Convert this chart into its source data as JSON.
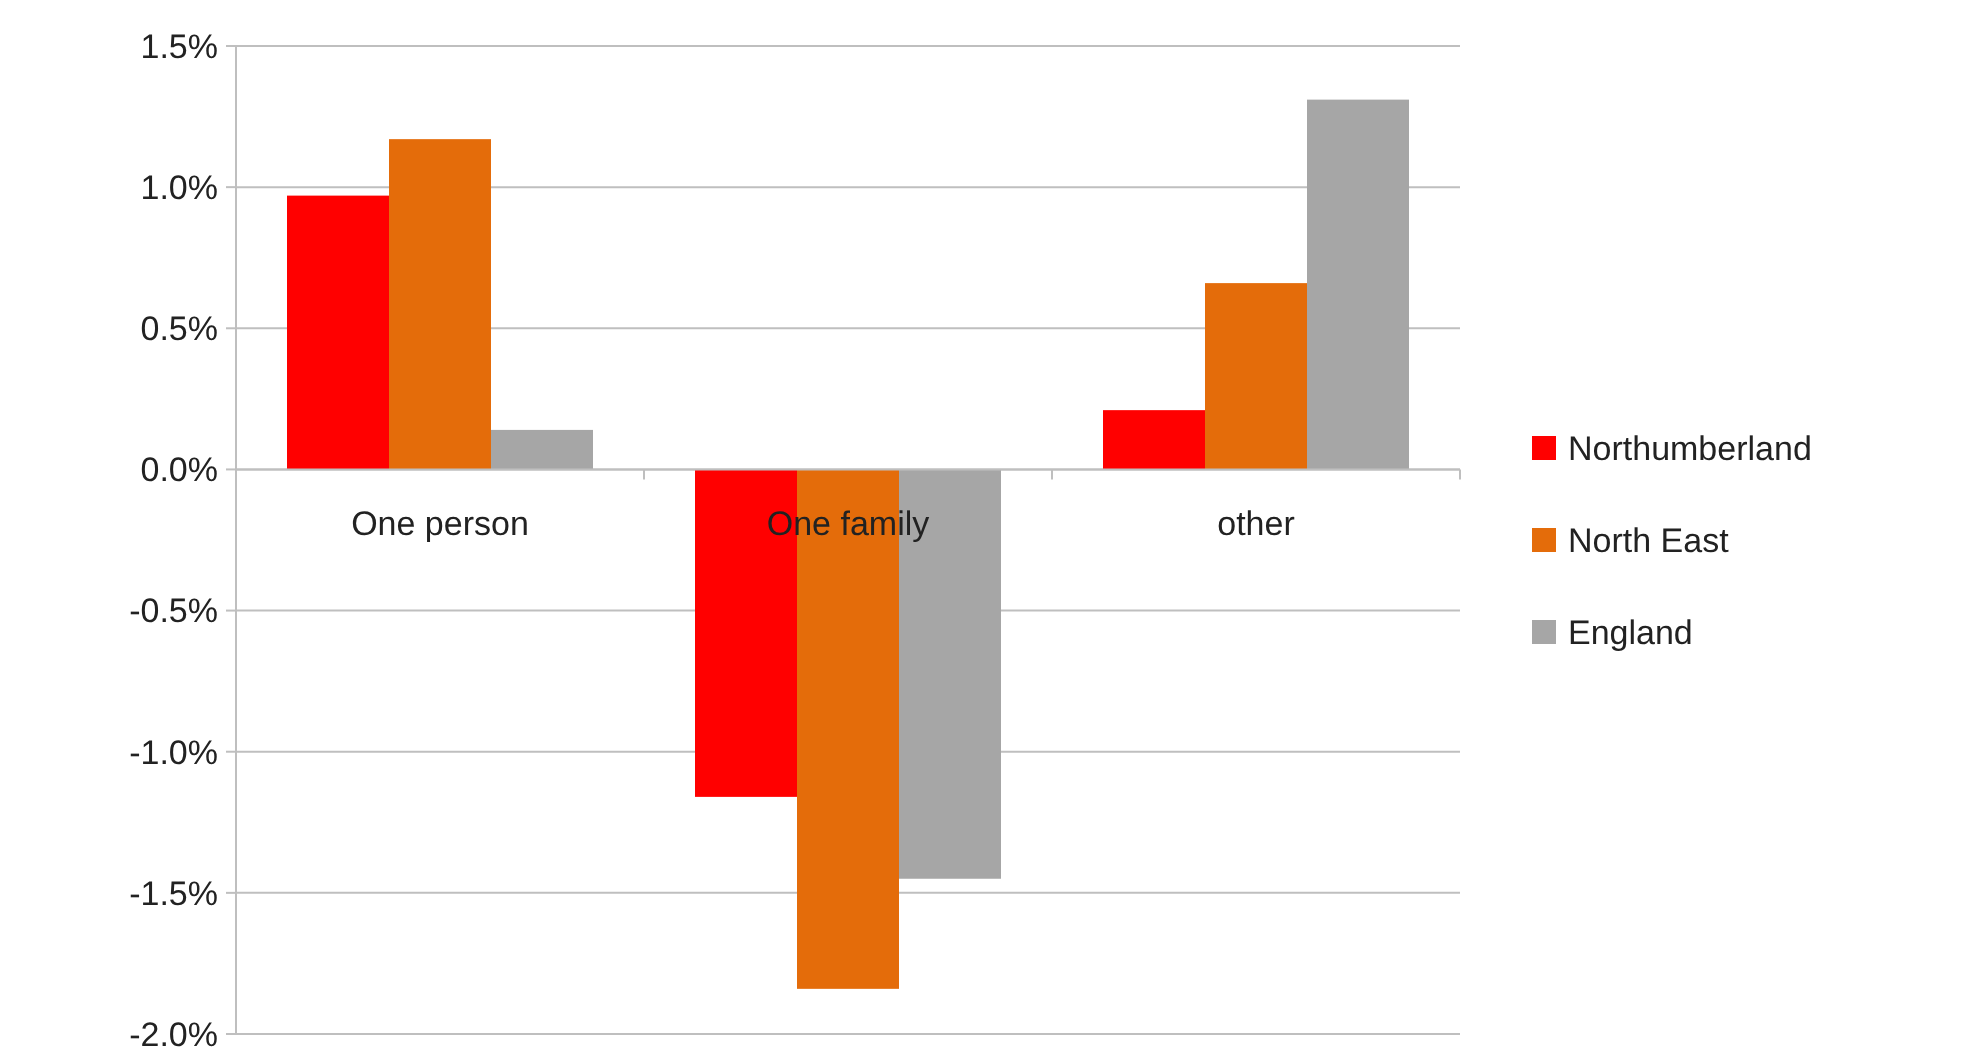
{
  "chart_data": {
    "type": "bar",
    "categories": [
      "One person",
      "One family",
      "other"
    ],
    "series": [
      {
        "name": "Northumberland",
        "color": "#ff0000",
        "values": [
          0.97,
          -1.16,
          0.21
        ]
      },
      {
        "name": "North East",
        "color": "#e46c0a",
        "values": [
          1.17,
          -1.84,
          0.66
        ]
      },
      {
        "name": "England",
        "color": "#a6a6a6",
        "values": [
          0.14,
          -1.45,
          1.31
        ]
      }
    ],
    "ylim": [
      -2.0,
      1.5
    ],
    "yticks": [
      {
        "value": -2.0,
        "label": "-2.0%"
      },
      {
        "value": -1.5,
        "label": "-1.5%"
      },
      {
        "value": -1.0,
        "label": "-1.0%"
      },
      {
        "value": -0.5,
        "label": "-0.5%"
      },
      {
        "value": 0,
        "label": "0.0%"
      },
      {
        "value": 0.5,
        "label": "0.5%"
      },
      {
        "value": 1.0,
        "label": "1.0%"
      },
      {
        "value": 1.5,
        "label": "1.5%"
      }
    ],
    "grid": "y",
    "legend": "right"
  }
}
